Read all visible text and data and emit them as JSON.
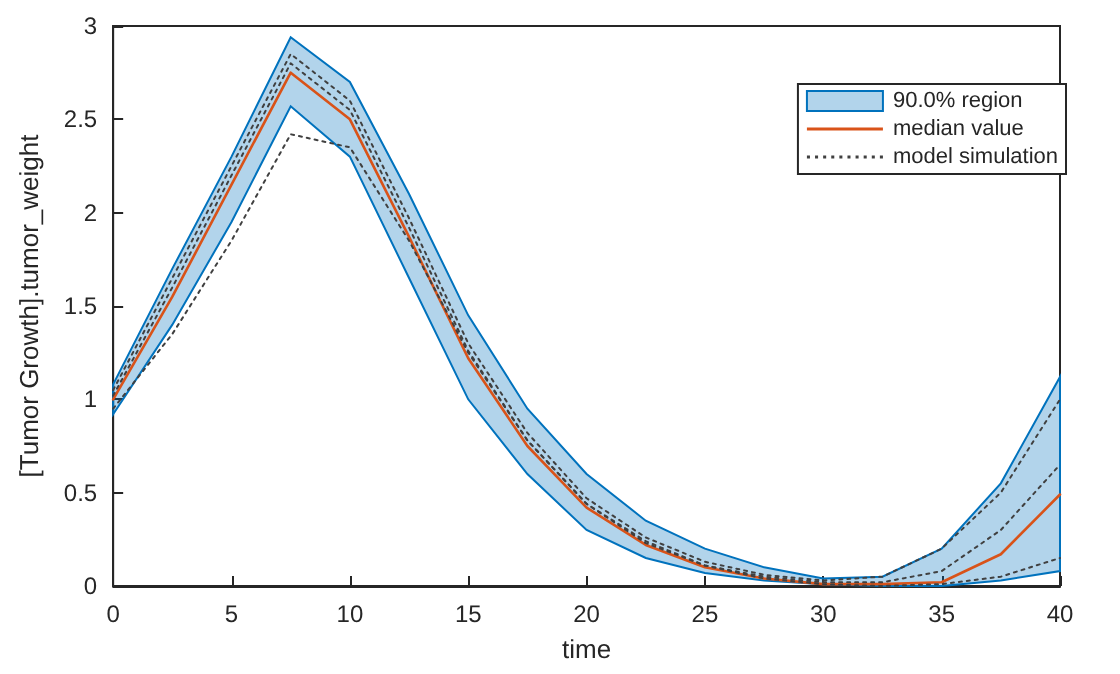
{
  "chart_data": {
    "type": "line",
    "xlabel": "time",
    "ylabel": "[Tumor Growth].tumor_weight",
    "x": [
      0,
      2.5,
      5,
      7.5,
      10,
      12.5,
      15,
      17.5,
      20,
      22.5,
      25,
      27.5,
      30,
      32.5,
      35,
      37.5,
      40
    ],
    "xlim": [
      0,
      40
    ],
    "xticks": [
      0,
      5,
      10,
      15,
      20,
      25,
      30,
      35,
      40
    ],
    "ylim": [
      0,
      3
    ],
    "yticks": [
      0,
      0.5,
      1,
      1.5,
      2,
      2.5,
      3
    ],
    "grid": false,
    "legend": "top right",
    "marker": "none",
    "series": [
      {
        "name": "90.0% region",
        "type": "line",
        "color": "#0072bd",
        "values": [
          null,
          null,
          null,
          null,
          null,
          null,
          null,
          null,
          null,
          null,
          null,
          null,
          null,
          null,
          null,
          null,
          null
        ],
        "lower": [
          0.92,
          1.4,
          1.95,
          2.57,
          2.3,
          1.65,
          1.0,
          0.6,
          0.3,
          0.15,
          0.07,
          0.03,
          0.01,
          0,
          0,
          0.03,
          0.08
        ],
        "upper": [
          1.08,
          1.7,
          2.3,
          2.94,
          2.7,
          2.1,
          1.45,
          0.95,
          0.6,
          0.35,
          0.2,
          0.1,
          0.04,
          0.05,
          0.2,
          0.55,
          1.12
        ]
      },
      {
        "name": "median value",
        "type": "line",
        "color": "#d95319",
        "line_style": "solid",
        "values": [
          1.0,
          1.55,
          2.15,
          2.75,
          2.5,
          1.87,
          1.22,
          0.75,
          0.42,
          0.22,
          0.1,
          0.04,
          0.01,
          0.01,
          0.02,
          0.17,
          0.49
        ]
      },
      {
        "name": "model simulation",
        "type": "line",
        "color": "#404040",
        "line_style": "dotted",
        "values": [
          0.95,
          1.35,
          1.85,
          2.42,
          2.35,
          1.85,
          1.25,
          0.78,
          0.44,
          0.23,
          0.11,
          0.04,
          0.01,
          0.0,
          0.01,
          0.05,
          0.15
        ]
      },
      {
        "type": "line",
        "color": "#404040",
        "line_style": "dotted",
        "values": [
          1.05,
          1.65,
          2.25,
          2.85,
          2.6,
          1.97,
          1.3,
          0.82,
          0.47,
          0.26,
          0.13,
          0.06,
          0.03,
          0.05,
          0.2,
          0.5,
          1.0
        ]
      },
      {
        "type": "line",
        "color": "#404040",
        "line_style": "dotted",
        "values": [
          1.02,
          1.6,
          2.2,
          2.8,
          2.55,
          1.92,
          1.26,
          0.78,
          0.44,
          0.24,
          0.11,
          0.05,
          0.02,
          0.02,
          0.08,
          0.3,
          0.65
        ]
      }
    ]
  }
}
